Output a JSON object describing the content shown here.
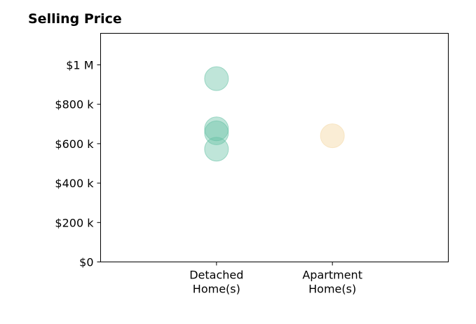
{
  "chart_data": {
    "type": "scatter",
    "title": "Selling Price",
    "xlabel": "",
    "ylabel": "",
    "categories": [
      [
        "Detached",
        "Home(s)"
      ],
      [
        "Apartment",
        "Home(s)"
      ]
    ],
    "x_range": [
      -1,
      2
    ],
    "ylim": [
      0,
      1160000
    ],
    "y_ticks": [
      0,
      200000,
      400000,
      600000,
      800000,
      1000000
    ],
    "y_tick_labels": [
      "$0",
      "$200 k",
      "$400 k",
      "$600 k",
      "$800 k",
      "$1 M"
    ],
    "grid": false,
    "legend": "none",
    "series": [
      {
        "category_index": 0,
        "color": "#66c2a5",
        "opacity": 0.42,
        "values": [
          930000,
          675000,
          655000,
          572000
        ]
      },
      {
        "category_index": 1,
        "color": "#f5deb3",
        "opacity": 0.55,
        "values": [
          640000
        ]
      }
    ]
  }
}
